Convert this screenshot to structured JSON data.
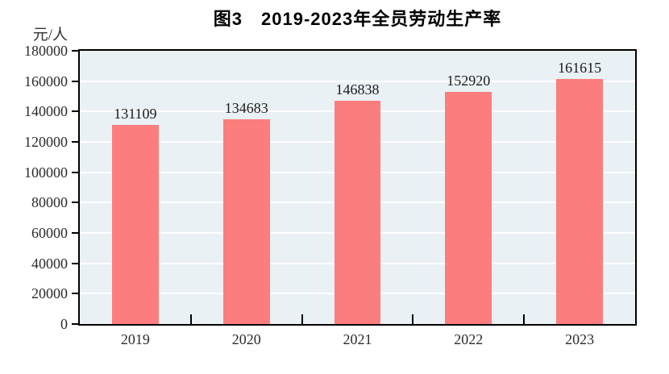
{
  "title": "图3　2019-2023年全员劳动生产率",
  "y_axis_unit": "元/人",
  "colors": {
    "bar": "#fc7d7d",
    "plot_background": "#eaf1f5",
    "gridline": "#ffffff",
    "axis": "#000000",
    "text": "#2b2b2b"
  },
  "chart_data": {
    "type": "bar",
    "title": "图3　2019-2023年全员劳动生产率",
    "categories": [
      "2019",
      "2020",
      "2021",
      "2022",
      "2023"
    ],
    "values": [
      131109,
      134683,
      146838,
      152920,
      161615
    ],
    "data_labels": [
      "131109",
      "134683",
      "146838",
      "152920",
      "161615"
    ],
    "xlabel": "",
    "ylabel": "元/人",
    "ylim": [
      0,
      180000
    ],
    "ytick_interval": 20000,
    "ytick_labels": [
      "0",
      "20000",
      "40000",
      "60000",
      "80000",
      "100000",
      "120000",
      "140000",
      "160000",
      "180000"
    ],
    "grid": true,
    "legend_position": "none",
    "bar_width_ratio": 0.42
  }
}
